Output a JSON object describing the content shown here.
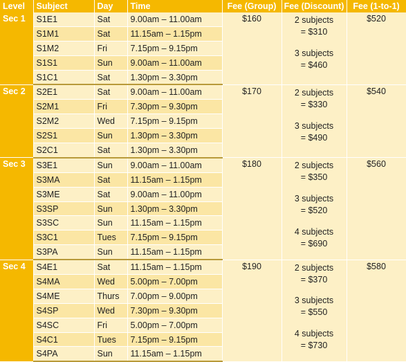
{
  "headers": [
    "Level",
    "Subject",
    "Day",
    "Time",
    "Fee (Group)",
    "Fee (Discount)",
    "Fee (1-to-1)"
  ],
  "groups": [
    {
      "level": "Sec 1",
      "fee_group": "$160",
      "fee_one_to_one": "$520",
      "discounts": [
        [
          "2 subjects",
          "= $310"
        ],
        [
          "3 subjects",
          "= $460"
        ]
      ],
      "rows": [
        [
          "S1E1",
          "Sat",
          "9.00am – 11.00am"
        ],
        [
          "S1M1",
          "Sat",
          "11.15am – 1.15pm"
        ],
        [
          "S1M2",
          "Fri",
          "7.15pm – 9.15pm"
        ],
        [
          "S1S1",
          "Sun",
          "9.00am – 11.00am"
        ],
        [
          "S1C1",
          "Sat",
          "1.30pm – 3.30pm"
        ]
      ]
    },
    {
      "level": "Sec 2",
      "fee_group": "$170",
      "fee_one_to_one": "$540",
      "discounts": [
        [
          "2 subjects",
          "= $330"
        ],
        [
          "3 subjects",
          "= $490"
        ]
      ],
      "rows": [
        [
          "S2E1",
          "Sat",
          "9.00am – 11.00am"
        ],
        [
          "S2M1",
          "Fri",
          "7.30pm – 9.30pm"
        ],
        [
          "S2M2",
          "Wed",
          "7.15pm – 9.15pm"
        ],
        [
          "S2S1",
          "Sun",
          "1.30pm – 3.30pm"
        ],
        [
          "S2C1",
          "Sat",
          "1.30pm – 3.30pm"
        ]
      ]
    },
    {
      "level": "Sec 3",
      "fee_group": "$180",
      "fee_one_to_one": "$560",
      "discounts": [
        [
          "2 subjects",
          "= $350"
        ],
        [
          "3 subjects",
          "= $520"
        ],
        [
          "4 subjects",
          "= $690"
        ]
      ],
      "rows": [
        [
          "S3E1",
          "Sun",
          "9.00am – 11.00am"
        ],
        [
          "S3MA",
          "Sat",
          "11.15am – 1.15pm"
        ],
        [
          "S3ME",
          "Sat",
          "9.00am – 11.00pm"
        ],
        [
          "S3SP",
          "Sun",
          "1.30pm – 3.30pm"
        ],
        [
          "S3SC",
          "Sun",
          "11.15am – 1.15pm"
        ],
        [
          "S3C1",
          "Tues",
          "7.15pm – 9.15pm"
        ],
        [
          "S3PA",
          "Sun",
          "11.15am – 1.15pm"
        ]
      ]
    },
    {
      "level": "Sec 4",
      "fee_group": "$190",
      "fee_one_to_one": "$580",
      "discounts": [
        [
          "2 subjects",
          "= $370"
        ],
        [
          "3 subjects",
          "= $550"
        ],
        [
          "4 subjects",
          "= $730"
        ]
      ],
      "rows": [
        [
          "S4E1",
          "Sat",
          "11.15am – 1.15pm"
        ],
        [
          "S4MA",
          "Wed",
          "5.00pm – 7.00pm"
        ],
        [
          "S4ME",
          "Thurs",
          "7.00pm – 9.00pm"
        ],
        [
          "S4SP",
          "Wed",
          "7.30pm – 9.30pm"
        ],
        [
          "S4SC",
          "Fri",
          "5.00pm – 7.00pm"
        ],
        [
          "S4C1",
          "Tues",
          "7.15pm – 9.15pm"
        ],
        [
          "S4PA",
          "Sun",
          "11.15am – 1.15pm"
        ]
      ]
    }
  ]
}
